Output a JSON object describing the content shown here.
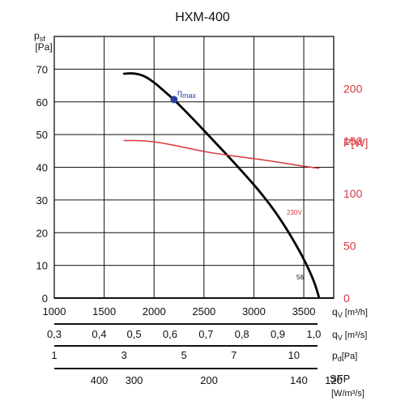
{
  "chart_data": {
    "type": "line",
    "title": "HXM-400",
    "left_axis": {
      "label_line1": "p",
      "label_sub": "sf",
      "label_line2": "[Pa]",
      "ticks": [
        "0",
        "10",
        "20",
        "30",
        "40",
        "50",
        "60",
        "70"
      ],
      "range": [
        0,
        80
      ]
    },
    "right_axis": {
      "label": "P[W]",
      "color": "#d9363e",
      "ticks": [
        "0",
        "50",
        "100",
        "150",
        "200"
      ],
      "range": [
        0,
        250
      ]
    },
    "x_axis": {
      "ticks": [
        "1000",
        "1500",
        "2000",
        "2500",
        "3000",
        "3500"
      ],
      "range": [
        1000,
        3800
      ],
      "unit_label": "q",
      "unit_sub": "V",
      "unit_rest": " [m³/h]"
    },
    "series": [
      {
        "name": "",
        "axis": "left",
        "color": "#000000",
        "x": [
          1700,
          1800,
          1900,
          2000,
          2100,
          2200,
          2400,
          2600,
          2800,
          3000,
          3100,
          3200,
          3300,
          3400,
          3500,
          3600,
          3650
        ],
        "y": [
          68.6,
          68.8,
          68,
          66,
          63.3,
          60.7,
          54.5,
          48,
          41.5,
          34.7,
          31,
          27,
          22.5,
          17.5,
          12,
          5.5,
          0.5
        ]
      },
      {
        "name": "230V",
        "axis": "right",
        "color": "#d9363e",
        "x": [
          1700,
          1900,
          2100,
          2300,
          2500,
          2700,
          2900,
          3100,
          3300,
          3500,
          3650
        ],
        "y": [
          150.5,
          150.5,
          148,
          144,
          140,
          137,
          134.5,
          132,
          129,
          126,
          124
        ]
      }
    ],
    "annotations": [
      {
        "text_main": "η",
        "text_sub": "max",
        "x": 2200,
        "y": 60.7,
        "color": "#2b3fa3"
      },
      {
        "text": "56",
        "x": 3680,
        "y": 6
      },
      {
        "text": "230V",
        "color": "#d9363e"
      }
    ],
    "secondary_scales": [
      {
        "ticks": [
          [
            "0,3",
            1000
          ],
          [
            "0,4",
            1450
          ],
          [
            "0,5",
            1800
          ],
          [
            "0,6",
            2160
          ],
          [
            "0,7",
            2520
          ],
          [
            "0,8",
            2880
          ],
          [
            "0,9",
            3240
          ],
          [
            "1,0",
            3600
          ]
        ],
        "unit_label": "q",
        "unit_sub": "V",
        "unit_rest": " [m³/s]"
      },
      {
        "ticks": [
          [
            "1",
            1000
          ],
          [
            "3",
            1700
          ],
          [
            "5",
            2300
          ],
          [
            "7",
            2800
          ],
          [
            "10",
            3400
          ]
        ],
        "unit_label": "p",
        "unit_sub": "d",
        "unit_rest": "[Pa]"
      },
      {
        "ticks": [
          [
            "400",
            1450
          ],
          [
            "300",
            1800
          ],
          [
            "200",
            2550
          ],
          [
            "140",
            3450
          ],
          [
            "120",
            3800
          ]
        ],
        "unit_label": "SFP",
        "unit_sub": "",
        "unit_rest": "",
        "unit_label2": "[W/m³/s]"
      }
    ],
    "grid": true
  }
}
